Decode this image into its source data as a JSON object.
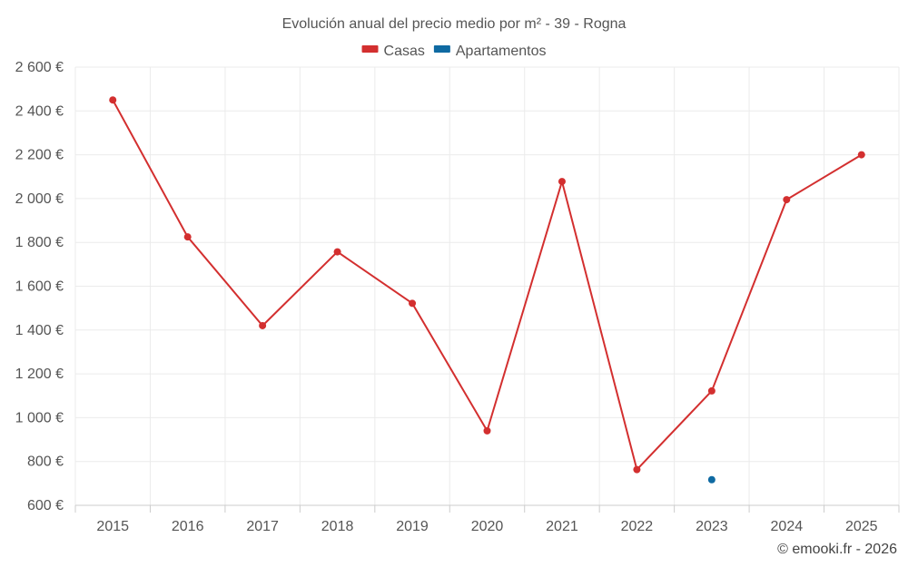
{
  "chart_data": {
    "type": "line",
    "title": "Evolución anual del precio medio por m² - 39 - Rogna",
    "categories": [
      "2015",
      "2016",
      "2017",
      "2018",
      "2019",
      "2020",
      "2021",
      "2022",
      "2023",
      "2024",
      "2025"
    ],
    "series": [
      {
        "name": "Casas",
        "color": "#d32f2f",
        "values": [
          2450,
          1825,
          1420,
          1757,
          1522,
          940,
          2078,
          763,
          1122,
          1995,
          2200
        ]
      },
      {
        "name": "Apartamentos",
        "color": "#0f6aa2",
        "values": [
          null,
          null,
          null,
          null,
          null,
          null,
          null,
          null,
          717,
          null,
          null
        ]
      }
    ],
    "ylim": [
      600,
      2600
    ],
    "yticks": [
      600,
      800,
      1000,
      1200,
      1400,
      1600,
      1800,
      2000,
      2200,
      2400,
      2600
    ],
    "ytick_labels": [
      "600 €",
      "800 €",
      "1 000 €",
      "1 200 €",
      "1 400 €",
      "1 600 €",
      "1 800 €",
      "2 000 €",
      "2 200 €",
      "2 400 €",
      "2 600 €"
    ],
    "xlabel": "",
    "ylabel": "",
    "grid": true,
    "legend": "top-center",
    "credit": "© emooki.fr - 2026"
  }
}
